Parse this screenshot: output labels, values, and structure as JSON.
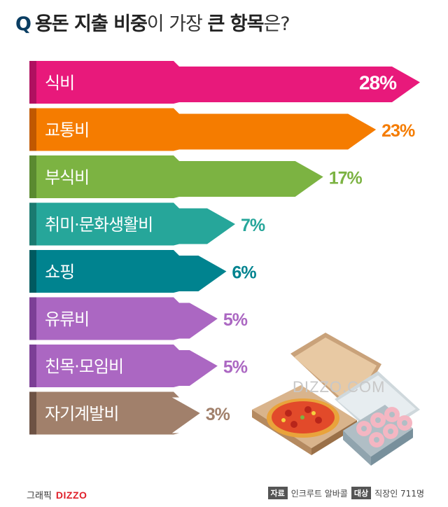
{
  "title": {
    "q": "Q",
    "bold_part": "용돈 지출 비중",
    "thin_part": "이 가장 ",
    "bold_part2": "큰 항목",
    "thin_part2": "은?"
  },
  "chart_data": {
    "type": "bar",
    "orientation": "horizontal",
    "categories": [
      "식비",
      "교통비",
      "부식비",
      "취미·문화생활비",
      "쇼핑",
      "유류비",
      "친목·모임비",
      "자기계발비"
    ],
    "values": [
      28,
      23,
      17,
      7,
      6,
      5,
      5,
      3
    ],
    "value_labels": [
      "28%",
      "23%",
      "17%",
      "7%",
      "6%",
      "5%",
      "5%",
      "3%"
    ],
    "colors": [
      "#e8197b",
      "#f57c00",
      "#7cb342",
      "#26a69a",
      "#00838f",
      "#ab67c2",
      "#ab67c2",
      "#a1806b"
    ],
    "side_colors": [
      "#b01060",
      "#c05800",
      "#5a8a30",
      "#1a7a70",
      "#005a60",
      "#7c3f96",
      "#7c3f96",
      "#6d5244"
    ],
    "label_colors": [
      "#ffffff",
      "#f57c00",
      "#7cb342",
      "#26a69a",
      "#00838f",
      "#ab67c2",
      "#ab67c2",
      "#a1806b"
    ],
    "xlim": [
      0,
      28
    ]
  },
  "watermark": "DIZZO.COM",
  "footer": {
    "credit_label": "그래픽",
    "credit_logo": "DIZZO",
    "source_tag": "자료",
    "source_value": "인크루트 알바콜",
    "target_tag": "대상",
    "target_value": "직장인 711명"
  },
  "illustration": "pizza-and-donut-box-illustration"
}
